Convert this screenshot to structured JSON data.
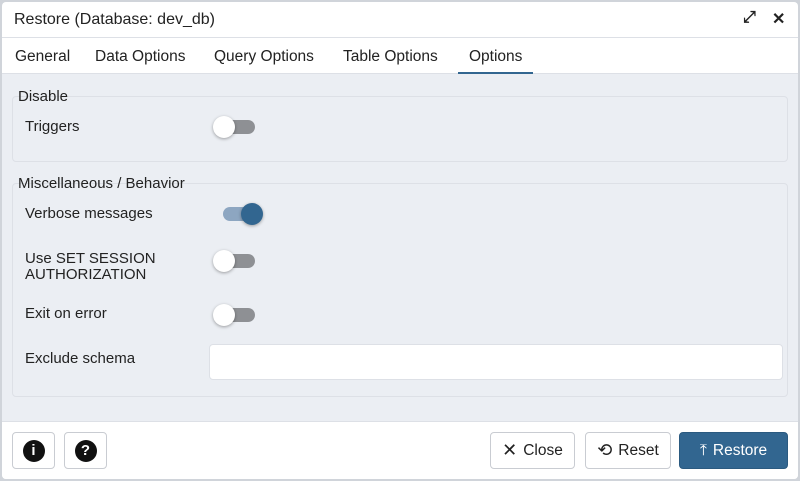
{
  "dialog": {
    "title": "Restore (Database: dev_db)",
    "expand_icon": "expand-icon",
    "close_icon": "close-icon"
  },
  "tabs": [
    {
      "label": "General"
    },
    {
      "label": "Data Options"
    },
    {
      "label": "Query Options"
    },
    {
      "label": "Table Options"
    },
    {
      "label": "Options",
      "active": true
    }
  ],
  "disable": {
    "legend": "Disable",
    "triggers_label": "Triggers",
    "triggers": false
  },
  "misc": {
    "legend": "Miscellaneous / Behavior",
    "verbose_label": "Verbose messages",
    "verbose": true,
    "session_label_1": "Use SET SESSION",
    "session_label_2": "AUTHORIZATION",
    "session": false,
    "exit_label": "Exit on error",
    "exit": false,
    "exclude_label": "Exclude schema",
    "exclude_value": ""
  },
  "footer": {
    "info": "i",
    "help": "?",
    "close": "Close",
    "reset": "Reset",
    "restore": "Restore"
  },
  "colors": {
    "accent": "#326690",
    "content_bg": "#ebeef3"
  }
}
